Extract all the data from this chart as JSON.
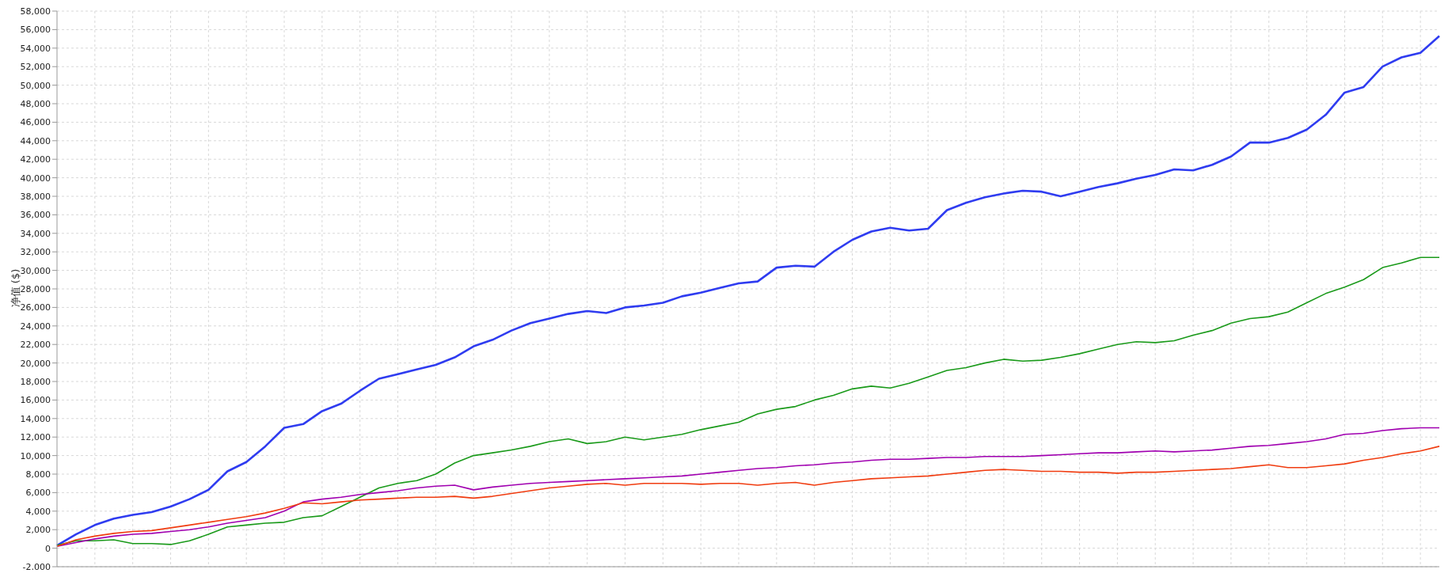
{
  "chart_data": {
    "type": "line",
    "ylabel": "净值 ($)",
    "categories": [
      null,
      null,
      null,
      null,
      null,
      null,
      null,
      null,
      null,
      null,
      null,
      null,
      null,
      null,
      null,
      null,
      null,
      null,
      null,
      null,
      null,
      null,
      null,
      null,
      null,
      null,
      null,
      null,
      null,
      null,
      null,
      null,
      null,
      null,
      null,
      null,
      null,
      null,
      null,
      null,
      null,
      null,
      null,
      null,
      null,
      null,
      null,
      null,
      null,
      null,
      null,
      null,
      null,
      null,
      null,
      null,
      null,
      null,
      null,
      null,
      null,
      null,
      null,
      null,
      null,
      null,
      null,
      null,
      null,
      null,
      null,
      null,
      null,
      null
    ],
    "series": [
      {
        "color": "#2f3cf0",
        "values": [
          300,
          1500,
          2500,
          3200,
          3600,
          3900,
          4500,
          5300,
          6300,
          8300,
          9300,
          11000,
          13000,
          13400,
          14800,
          15600,
          17000,
          18300,
          18800,
          19300,
          19800,
          20600,
          21800,
          22500,
          23500,
          24300,
          24800,
          25300,
          25600,
          25400,
          26000,
          26200,
          26500,
          27200,
          27600,
          28100,
          28600,
          28800,
          30300,
          30500,
          30400,
          32000,
          33300,
          34200,
          34600,
          34300,
          34500,
          36500,
          37300,
          37900,
          38300,
          38600,
          38500,
          38000,
          38500,
          39000,
          39400,
          39900,
          40300,
          40900,
          40800,
          41400,
          42300,
          43800,
          43800,
          44300,
          45200,
          46800,
          49200,
          49800,
          52000,
          53000,
          53500,
          55300
        ]
      },
      {
        "color": "#1a9a1a",
        "values": [
          300,
          800,
          800,
          900,
          500,
          500,
          400,
          800,
          1500,
          2300,
          2500,
          2700,
          2800,
          3300,
          3500,
          4500,
          5500,
          6500,
          7000,
          7300,
          8000,
          9200,
          10000,
          10300,
          10600,
          11000,
          11500,
          11800,
          11300,
          11500,
          12000,
          11700,
          12000,
          12300,
          12800,
          13200,
          13600,
          14500,
          15000,
          15300,
          16000,
          16500,
          17200,
          17500,
          17300,
          17800,
          18500,
          19200,
          19500,
          20000,
          20400,
          20200,
          20300,
          20600,
          21000,
          21500,
          22000,
          22300,
          22200,
          22400,
          23000,
          23500,
          24300,
          24800,
          25000,
          25500,
          26500,
          27500,
          28200,
          29000,
          30300,
          30800,
          31400,
          31400
        ]
      },
      {
        "color": "#a000b0",
        "values": [
          200,
          600,
          1000,
          1300,
          1500,
          1600,
          1800,
          2000,
          2300,
          2700,
          3000,
          3300,
          4000,
          5000,
          5300,
          5500,
          5800,
          6000,
          6200,
          6500,
          6700,
          6800,
          6300,
          6600,
          6800,
          7000,
          7100,
          7200,
          7300,
          7400,
          7500,
          7600,
          7700,
          7800,
          8000,
          8200,
          8400,
          8600,
          8700,
          8900,
          9000,
          9200,
          9300,
          9500,
          9600,
          9600,
          9700,
          9800,
          9800,
          9900,
          9900,
          9900,
          10000,
          10100,
          10200,
          10300,
          10300,
          10400,
          10500,
          10400,
          10500,
          10600,
          10800,
          11000,
          11100,
          11300,
          11500,
          11800,
          12300,
          12400,
          12700,
          12900,
          13000,
          13000
        ]
      },
      {
        "color": "#f03c10",
        "values": [
          200,
          900,
          1300,
          1600,
          1800,
          1900,
          2200,
          2500,
          2800,
          3100,
          3400,
          3800,
          4300,
          4900,
          4800,
          5000,
          5200,
          5300,
          5400,
          5500,
          5500,
          5600,
          5400,
          5600,
          5900,
          6200,
          6500,
          6700,
          6900,
          7000,
          6800,
          7000,
          7000,
          7000,
          6900,
          7000,
          7000,
          6800,
          7000,
          7100,
          6800,
          7100,
          7300,
          7500,
          7600,
          7700,
          7800,
          8000,
          8200,
          8400,
          8500,
          8400,
          8300,
          8300,
          8200,
          8200,
          8100,
          8200,
          8200,
          8300,
          8400,
          8500,
          8600,
          8800,
          9000,
          8700,
          8700,
          8900,
          9100,
          9500,
          9800,
          10200,
          10500,
          11000
        ]
      }
    ],
    "ylim": [
      -2000,
      58000
    ],
    "yticks": [
      {
        "value": -2000,
        "label": "-2,000"
      },
      {
        "value": 0,
        "label": "0"
      },
      {
        "value": 2000,
        "label": "2,000"
      },
      {
        "value": 4000,
        "label": "4,000"
      },
      {
        "value": 6000,
        "label": "6,000"
      },
      {
        "value": 8000,
        "label": "8,000"
      },
      {
        "value": 10000,
        "label": "10,000"
      },
      {
        "value": 12000,
        "label": "12,000"
      },
      {
        "value": 14000,
        "label": "14,000"
      },
      {
        "value": 16000,
        "label": "16,000"
      },
      {
        "value": 18000,
        "label": "18,000"
      },
      {
        "value": 20000,
        "label": "20,000"
      },
      {
        "value": 22000,
        "label": "22,000"
      },
      {
        "value": 24000,
        "label": "24,000"
      },
      {
        "value": 26000,
        "label": "26,000"
      },
      {
        "value": 28000,
        "label": "28,000"
      },
      {
        "value": 30000,
        "label": "30,000"
      },
      {
        "value": 32000,
        "label": "32,000"
      },
      {
        "value": 34000,
        "label": "34,000"
      },
      {
        "value": 36000,
        "label": "36,000"
      },
      {
        "value": 38000,
        "label": "38,000"
      },
      {
        "value": 40000,
        "label": "40,000"
      },
      {
        "value": 42000,
        "label": "42,000"
      },
      {
        "value": 44000,
        "label": "44,000"
      },
      {
        "value": 46000,
        "label": "46,000"
      },
      {
        "value": 48000,
        "label": "48,000"
      },
      {
        "value": 50000,
        "label": "50,000"
      },
      {
        "value": 52000,
        "label": "52,000"
      },
      {
        "value": 54000,
        "label": "54,000"
      },
      {
        "value": 56000,
        "label": "56,000"
      },
      {
        "value": 58000,
        "label": "58,000"
      }
    ],
    "grid": true,
    "tick_labels": "y",
    "marker": "none",
    "line_style": "solid",
    "legend": false
  }
}
